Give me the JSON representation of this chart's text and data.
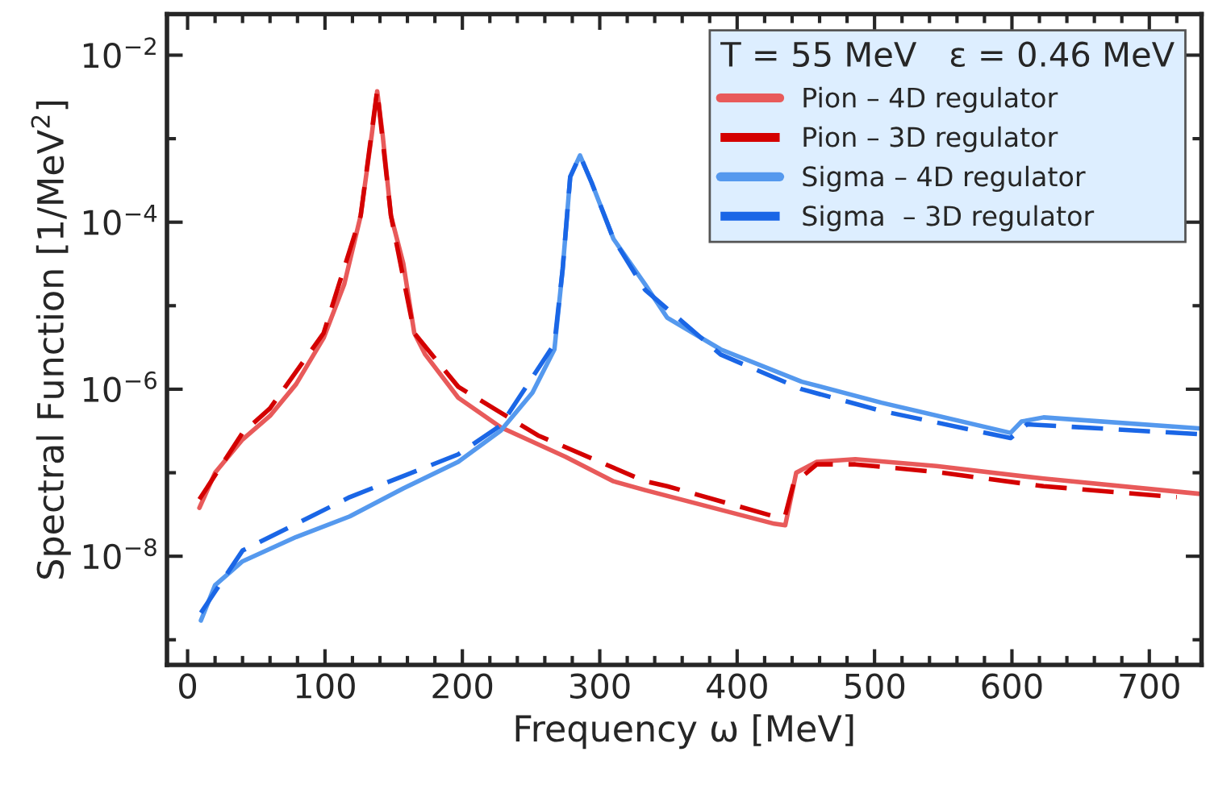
{
  "chart_data": {
    "type": "line",
    "xlabel": "Frequency ω [MeV]",
    "ylabel": "Spectral Function [1/MeV$^{2}$]",
    "legend_title": "T = 55 MeV   ε = 0.46 MeV",
    "log": "y",
    "grid": false,
    "legend": "top right",
    "xlim": [
      -15,
      738
    ],
    "ylim": [
      5e-10,
      0.031
    ],
    "xticks": [
      0,
      {
        "value": 20,
        "label": null
      },
      {
        "value": 40,
        "label": null
      },
      {
        "value": 60,
        "label": null
      },
      {
        "value": 80,
        "label": null
      },
      100,
      {
        "value": 120,
        "label": null
      },
      {
        "value": 140,
        "label": null
      },
      {
        "value": 160,
        "label": null
      },
      {
        "value": 180,
        "label": null
      },
      200,
      {
        "value": 220,
        "label": null
      },
      {
        "value": 240,
        "label": null
      },
      {
        "value": 260,
        "label": null
      },
      {
        "value": 280,
        "label": null
      },
      300,
      {
        "value": 320,
        "label": null
      },
      {
        "value": 340,
        "label": null
      },
      {
        "value": 360,
        "label": null
      },
      {
        "value": 380,
        "label": null
      },
      400,
      {
        "value": 420,
        "label": null
      },
      {
        "value": 440,
        "label": null
      },
      {
        "value": 460,
        "label": null
      },
      {
        "value": 480,
        "label": null
      },
      500,
      {
        "value": 520,
        "label": null
      },
      {
        "value": 540,
        "label": null
      },
      {
        "value": 560,
        "label": null
      },
      {
        "value": 580,
        "label": null
      },
      600,
      {
        "value": 620,
        "label": null
      },
      {
        "value": 640,
        "label": null
      },
      {
        "value": 660,
        "label": null
      },
      {
        "value": 680,
        "label": null
      },
      700,
      {
        "value": 720,
        "label": null
      }
    ],
    "yticks": [
      {
        "value": 1e-09,
        "label": null
      },
      {
        "value": 1e-08,
        "label": "10$^{−8}$"
      },
      {
        "value": 1e-07,
        "label": null
      },
      {
        "value": 1e-06,
        "label": "10$^{−6}$"
      },
      {
        "value": 1e-05,
        "label": null
      },
      {
        "value": 0.0001,
        "label": "10$^{−4}$"
      },
      {
        "value": 0.001,
        "label": null
      },
      {
        "value": 0.01,
        "label": "10$^{−2}$"
      }
    ],
    "series": [
      {
        "name": "Pion – 4D regulator",
        "color": "#e85a5a",
        "line_style": "solid",
        "x": [
          8.6,
          20,
          40,
          60,
          79,
          99,
          114,
          126,
          134,
          138,
          142,
          148,
          157,
          165,
          173,
          197,
          228,
          275,
          310,
          333,
          427,
          435,
          443,
          458,
          486,
          545,
          623,
          736
        ],
        "values": [
          3.8e-08,
          1e-07,
          2.5e-07,
          4.8e-07,
          1.15e-06,
          4.1e-06,
          1.8e-05,
          0.00012,
          0.0011,
          0.0037,
          0.0011,
          0.00012,
          3.2e-05,
          4.7e-06,
          2.6e-06,
          7.9e-07,
          3.5e-07,
          1.55e-07,
          7.9e-08,
          6.2e-08,
          2.45e-08,
          2.35e-08,
          1e-07,
          1.35e-07,
          1.45e-07,
          1.2e-07,
          8.5e-08,
          5.6e-08
        ]
      },
      {
        "name": "Pion – 3D regulator",
        "color": "#d40000",
        "line_style": "dashed",
        "x": [
          8.6,
          40,
          60,
          99,
          126,
          138,
          148,
          165,
          197,
          255,
          333,
          349,
          427,
          435,
          441,
          458,
          486,
          545,
          623,
          720
        ],
        "values": [
          4.8e-08,
          3e-07,
          5.9e-07,
          4.7e-06,
          0.00012,
          0.0038,
          0.00012,
          4.7e-06,
          1.07e-06,
          2.8e-07,
          7.9e-08,
          6.9e-08,
          3e-08,
          3.1e-08,
          7.4e-08,
          1.26e-07,
          1.26e-07,
          1.02e-07,
          6.9e-08,
          5.1e-08
        ]
      },
      {
        "name": "Sigma – 4D regulator",
        "color": "#5599ee",
        "line_style": "solid",
        "x": [
          9.7,
          20,
          40,
          79,
          118,
          157,
          197,
          228,
          251,
          267,
          273,
          278.5,
          285.6,
          294,
          310,
          333,
          349,
          388,
          447,
          505,
          599,
          607,
          623,
          736
        ],
        "values": [
          1.7e-09,
          4.5e-09,
          8.7e-09,
          1.7e-08,
          3e-08,
          6.5e-08,
          1.35e-07,
          3.2e-07,
          9.1e-07,
          3e-06,
          2.75e-05,
          0.00035,
          0.00063,
          0.0003,
          6.3e-05,
          1.8e-05,
          7.2e-06,
          3e-06,
          1.23e-06,
          6.9e-07,
          3e-07,
          4.1e-07,
          4.6e-07,
          3.4e-07
        ]
      },
      {
        "name": "Sigma  – 3D regulator",
        "color": "#1a66e6",
        "line_style": "dashed",
        "x": [
          9.7,
          40,
          118,
          197,
          228,
          267,
          273,
          278.5,
          285.6,
          294,
          310,
          333,
          388,
          447,
          505,
          599,
          611,
          736
        ],
        "values": [
          2.1e-09,
          1.17e-08,
          5.1e-08,
          1.66e-07,
          3.7e-07,
          3.5e-06,
          2.75e-05,
          0.00035,
          0.00063,
          0.0003,
          6.3e-05,
          1.55e-05,
          2.6e-06,
          1e-06,
          5.5e-07,
          2.6e-07,
          3.8e-07,
          2.9e-07
        ]
      }
    ]
  }
}
